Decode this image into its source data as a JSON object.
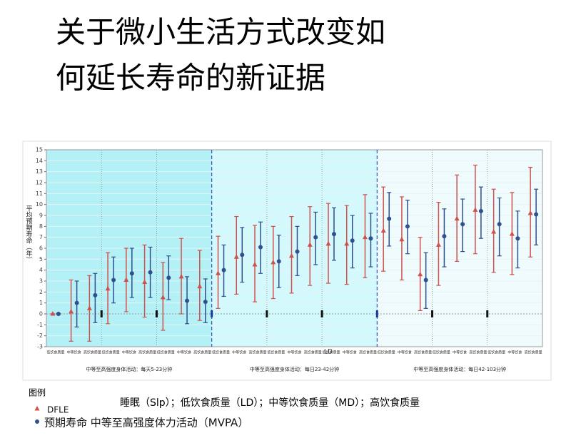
{
  "chart_data": {
    "type": "errorbar",
    "title_lines": [
      "关于微小生活方式改变如",
      "何延长寿命的新证据"
    ],
    "y_label": "平均预期寿命（年）",
    "ylim": [
      -3,
      15
    ],
    "yticks": [
      -3,
      -2,
      -1,
      0,
      1,
      2,
      3,
      4,
      5,
      6,
      7,
      8,
      9,
      10,
      11,
      12,
      13,
      14,
      15
    ],
    "grid": true,
    "categories": [
      "低饮食质量",
      "中等饮食",
      "高饮食质量",
      "低饮食质量",
      "中等饮食",
      "高饮食质量",
      "低饮食质量",
      "中等饮食",
      "高饮食质量",
      "低饮食质量",
      "中等饮食",
      "高饮食质量",
      "低饮食质量",
      "中等饮食",
      "高饮食质量",
      "低饮食质量",
      "中等饮食",
      "高饮食质量",
      "低饮食质量",
      "中等饮食",
      "高饮食质量",
      "低饮食质量",
      "中等饮食",
      "高饮食质量",
      "低饮食质量",
      "中等饮食",
      "高饮食质量"
    ],
    "groups": [
      "中等至高强度身体活动：每天5-23分钟",
      "中等至高强度身体活动：每日23-42分钟",
      "中等至高强度身体活动：每日42-103分钟"
    ],
    "annotation": "LD",
    "series": [
      {
        "name": "DFLE",
        "color": "#d0504c",
        "marker": "triangle",
        "values": [
          0,
          0.2,
          0.5,
          2.3,
          3.1,
          2.9,
          1.5,
          3.4,
          2.5,
          3.7,
          5.2,
          4.5,
          4.7,
          5.3,
          6.3,
          6.4,
          6.4,
          7.0,
          7.6,
          6.8,
          3.6,
          6.3,
          8.7,
          9.5,
          7.5,
          7.3,
          9.2
        ],
        "lower": [
          0,
          -2.5,
          -2.5,
          -0.9,
          0.2,
          -0.3,
          -1.5,
          0.0,
          -0.6,
          0.5,
          1.8,
          1.1,
          1.4,
          1.9,
          2.6,
          2.8,
          2.7,
          3.3,
          3.9,
          3.1,
          0.3,
          2.6,
          4.8,
          5.5,
          3.8,
          3.6,
          5.2
        ],
        "upper": [
          0,
          3.1,
          3.5,
          5.6,
          6.0,
          6.3,
          4.7,
          6.9,
          5.8,
          7.1,
          8.9,
          8.1,
          8.0,
          8.9,
          9.8,
          10.1,
          9.9,
          10.9,
          11.6,
          10.7,
          7.0,
          10.2,
          12.7,
          13.6,
          11.4,
          11.1,
          13.4
        ]
      },
      {
        "name": "预期寿命 中等至高强度体力活动（MVPA）",
        "color": "#2f4f8f",
        "marker": "circle",
        "values": [
          0,
          1.0,
          1.7,
          3.1,
          3.7,
          3.8,
          3.3,
          1.2,
          1.1,
          4.0,
          5.4,
          6.1,
          4.8,
          5.7,
          7.0,
          7.3,
          6.7,
          6.9,
          8.7,
          8.0,
          3.1,
          7.1,
          8.2,
          9.4,
          8.2,
          6.9,
          9.1
        ],
        "lower": [
          0,
          -1.2,
          -0.8,
          1.0,
          1.5,
          1.5,
          1.3,
          -0.9,
          -0.8,
          1.6,
          2.9,
          3.7,
          2.4,
          3.5,
          4.5,
          4.9,
          4.2,
          4.3,
          6.2,
          5.5,
          0.5,
          4.3,
          5.7,
          6.9,
          5.3,
          4.2,
          6.3
        ],
        "upper": [
          0,
          3.0,
          3.7,
          5.2,
          6.0,
          6.1,
          5.3,
          3.4,
          3.2,
          6.3,
          7.9,
          8.4,
          7.2,
          8.0,
          9.3,
          9.7,
          9.0,
          9.2,
          11.1,
          10.4,
          5.6,
          9.6,
          10.5,
          11.6,
          10.6,
          9.4,
          11.4
        ]
      }
    ],
    "legend_title": "图例",
    "legend_note": "睡眠（Slp）；低饮食质量（LD）；中等饮食质量（MD）；高饮食质量"
  }
}
